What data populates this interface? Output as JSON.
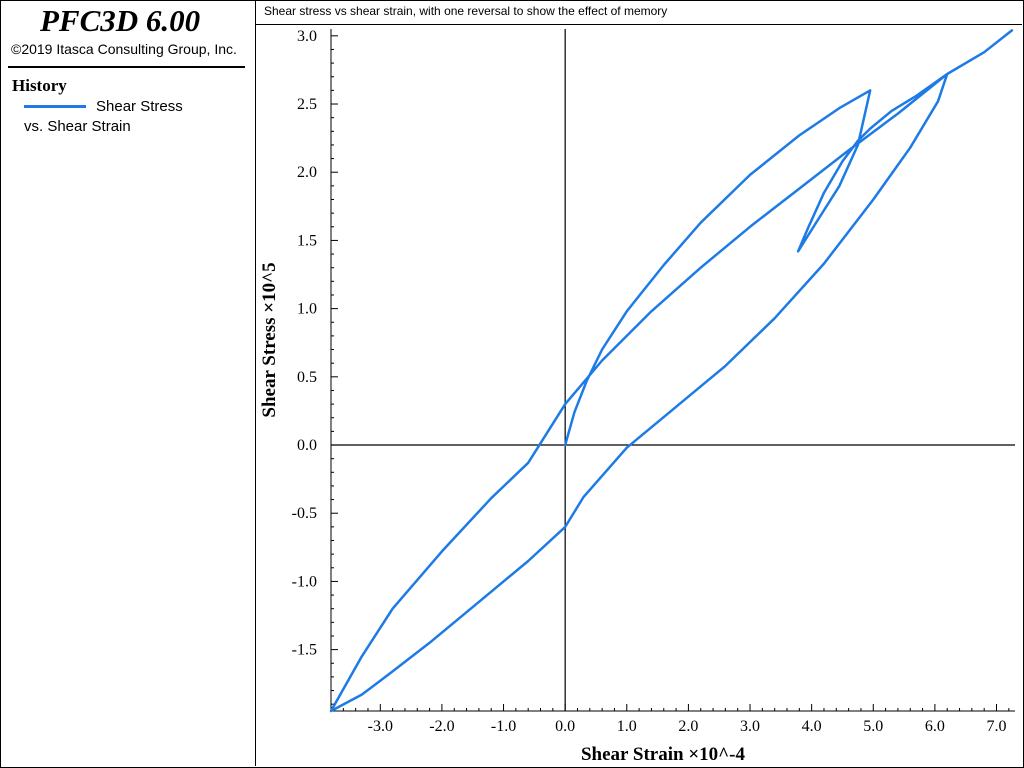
{
  "app": {
    "title": "PFC3D 6.00",
    "copyright": "©2019 Itasca Consulting Group, Inc."
  },
  "legend": {
    "heading": "History",
    "line1": "Shear Stress",
    "line2": "vs. Shear Strain",
    "color": "#1e7be6"
  },
  "plot_title": "Shear stress vs shear strain, with one reversal to show the effect of memory",
  "chart_data": {
    "type": "line",
    "title": "Shear stress vs shear strain, with one reversal to show the effect of memory",
    "xlabel": "Shear Strain ×10^-4",
    "ylabel": "Shear Stress ×10^5",
    "xlim": [
      -3.8,
      7.3
    ],
    "ylim": [
      -1.95,
      3.05
    ],
    "x_ticks": [
      -3.0,
      -2.0,
      -1.0,
      0.0,
      1.0,
      2.0,
      3.0,
      4.0,
      5.0,
      6.0,
      7.0
    ],
    "x_tick_labels": [
      "-3.0",
      "-2.0",
      "-1.0",
      "0.0",
      "1.0",
      "2.0",
      "3.0",
      "4.0",
      "5.0",
      "6.0",
      "7.0"
    ],
    "y_ticks": [
      3.0,
      2.5,
      2.0,
      1.5,
      1.0,
      0.5,
      0.0,
      -0.5,
      -1.0,
      -1.5
    ],
    "y_tick_labels": [
      "3.0",
      "2.5",
      "2.0",
      "1.5",
      "1.0",
      "0.5",
      "0.0",
      "-0.5",
      "-1.0",
      "-1.5"
    ],
    "grid": false,
    "series": [
      {
        "name": "Shear Stress vs. Shear Strain",
        "color": "#1e7be6",
        "x": [
          0.0,
          0.15,
          0.35,
          0.6,
          1.0,
          1.6,
          2.2,
          3.0,
          3.8,
          4.45,
          4.95,
          4.75,
          4.45,
          4.1,
          3.78,
          3.95,
          4.2,
          4.5,
          4.75,
          4.95,
          5.3,
          5.7,
          6.2,
          6.05,
          5.6,
          5.0,
          4.2,
          3.4,
          2.6,
          1.8,
          1.0,
          0.3,
          0.0,
          -0.6,
          -1.4,
          -2.2,
          -2.8,
          -3.3,
          -3.8,
          -3.3,
          -2.8,
          -2.0,
          -1.2,
          -0.6,
          0.0,
          0.6,
          1.4,
          2.2,
          3.0,
          3.8,
          4.6,
          5.4,
          6.2,
          6.8,
          7.25
        ],
        "y": [
          0.0,
          0.24,
          0.47,
          0.7,
          0.98,
          1.32,
          1.63,
          1.98,
          2.27,
          2.47,
          2.6,
          2.2,
          1.9,
          1.65,
          1.42,
          1.6,
          1.85,
          2.08,
          2.23,
          2.32,
          2.45,
          2.56,
          2.72,
          2.52,
          2.18,
          1.8,
          1.33,
          0.93,
          0.58,
          0.28,
          -0.02,
          -0.38,
          -0.6,
          -0.85,
          -1.15,
          -1.45,
          -1.66,
          -1.83,
          -1.95,
          -1.55,
          -1.2,
          -0.78,
          -0.39,
          -0.13,
          0.3,
          0.62,
          0.98,
          1.3,
          1.6,
          1.88,
          2.16,
          2.43,
          2.72,
          2.88,
          3.04
        ]
      }
    ]
  }
}
